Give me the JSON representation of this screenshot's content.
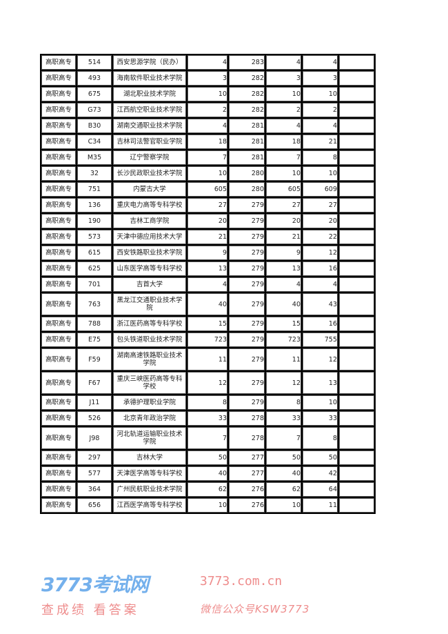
{
  "rows": [
    [
      "高职高专",
      "514",
      "西安思源学院（民办）",
      "4",
      "283",
      "4",
      "4",
      ""
    ],
    [
      "高职高专",
      "493",
      "海南软件职业技术学院",
      "3",
      "282",
      "3",
      "3",
      ""
    ],
    [
      "高职高专",
      "675",
      "湖北职业技术学院",
      "10",
      "282",
      "10",
      "10",
      ""
    ],
    [
      "高职高专",
      "G73",
      "江西航空职业技术学院",
      "2",
      "282",
      "2",
      "2",
      ""
    ],
    [
      "高职高专",
      "B30",
      "湖南交通职业技术学院",
      "4",
      "281",
      "4",
      "4",
      ""
    ],
    [
      "高职高专",
      "C34",
      "吉林司法警官职业学院",
      "18",
      "281",
      "18",
      "21",
      ""
    ],
    [
      "高职高专",
      "M35",
      "辽宁警察学院",
      "7",
      "281",
      "7",
      "8",
      ""
    ],
    [
      "高职高专",
      "32",
      "长沙民政职业技术学院",
      "10",
      "280",
      "10",
      "10",
      ""
    ],
    [
      "高职高专",
      "751",
      "内蒙古大学",
      "605",
      "280",
      "605",
      "609",
      ""
    ],
    [
      "高职高专",
      "136",
      "重庆电力高等专科学校",
      "27",
      "279",
      "27",
      "27",
      ""
    ],
    [
      "高职高专",
      "190",
      "吉林工商学院",
      "20",
      "279",
      "20",
      "20",
      ""
    ],
    [
      "高职高专",
      "573",
      "天津中德应用技术大学",
      "21",
      "279",
      "21",
      "22",
      ""
    ],
    [
      "高职高专",
      "615",
      "西安铁路职业技术学院",
      "9",
      "279",
      "9",
      "12",
      ""
    ],
    [
      "高职高专",
      "625",
      "山东医学高等专科学校",
      "13",
      "279",
      "13",
      "16",
      ""
    ],
    [
      "高职高专",
      "701",
      "吉首大学",
      "4",
      "279",
      "4",
      "4",
      ""
    ],
    [
      "高职高专",
      "763",
      "黑龙江交通职业技术学院",
      "40",
      "279",
      "40",
      "43",
      ""
    ],
    [
      "高职高专",
      "788",
      "浙江医药高等专科学校",
      "15",
      "279",
      "15",
      "16",
      ""
    ],
    [
      "高职高专",
      "E75",
      "包头铁道职业技术学院",
      "723",
      "279",
      "723",
      "755",
      ""
    ],
    [
      "高职高专",
      "F59",
      "湖南高速铁路职业技术学院",
      "11",
      "279",
      "11",
      "12",
      ""
    ],
    [
      "高职高专",
      "F67",
      "重庆三峡医药高等专科学校",
      "12",
      "279",
      "12",
      "13",
      ""
    ],
    [
      "高职高专",
      "J11",
      "承德护理职业学院",
      "8",
      "279",
      "8",
      "10",
      ""
    ],
    [
      "高职高专",
      "526",
      "北京青年政治学院",
      "33",
      "278",
      "33",
      "33",
      ""
    ],
    [
      "高职高专",
      "J98",
      "河北轨道运输职业技术学院",
      "7",
      "278",
      "7",
      "8",
      ""
    ],
    [
      "高职高专",
      "297",
      "吉林大学",
      "50",
      "277",
      "50",
      "50",
      ""
    ],
    [
      "高职高专",
      "577",
      "天津医学高等专科学校",
      "40",
      "277",
      "40",
      "42",
      ""
    ],
    [
      "高职高专",
      "364",
      "广州民航职业技术学院",
      "62",
      "276",
      "62",
      "64",
      ""
    ],
    [
      "高职高专",
      "656",
      "江西医学高等专科学校",
      "10",
      "276",
      "10",
      "11",
      ""
    ]
  ],
  "watermark": {
    "logo": "3773考试网",
    "url": "3773.com.cn",
    "slogan": "查成绩 看答案",
    "wechat": "微信公众号KSW3773",
    "logo_color": "#4696e6",
    "text_color": "#eb7878"
  }
}
